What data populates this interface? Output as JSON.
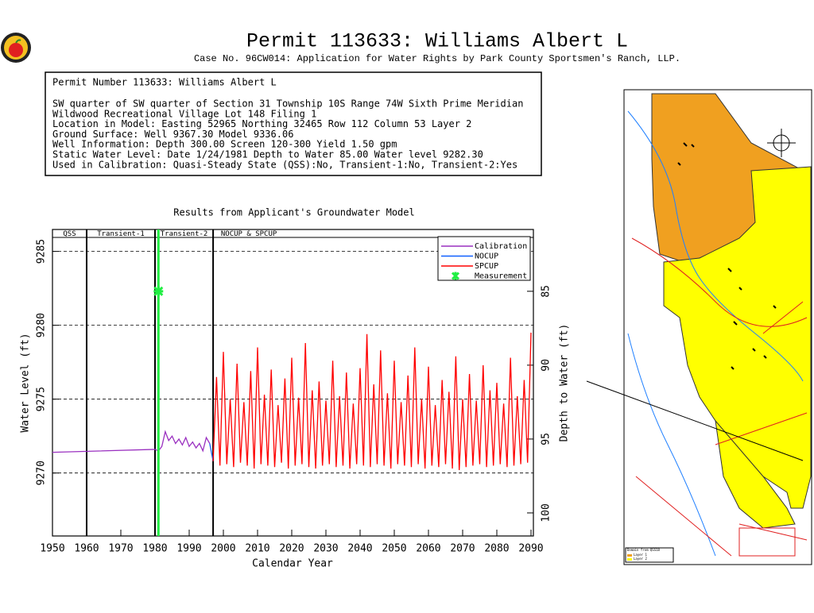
{
  "header": {
    "title": "Permit  113633:   Williams  Albert  L",
    "subtitle": "Case No. 96CW014: Application for Water Rights by Park County Sportsmen's Ranch, LLP."
  },
  "info": {
    "lines": [
      "Permit Number 113633: Williams Albert L",
      "SW quarter of SW quarter of Section 31 Township 10S Range 74W Sixth Prime Meridian",
      "Wildwood Recreational Village Lot 148 Filing 1",
      "Location in Model: Easting 52965 Northing  32465 Row 112 Column 53 Layer 2",
      "Ground Surface: Well  9367.30 Model  9336.06",
      "Well Information: Depth   300.00 Screen 120-300 Yield      1.50 gpm",
      "Static Water Level: Date  1/24/1981 Depth to Water     85.00 Water level  9282.30",
      "Used in Calibration: Quasi-Steady State (QSS):No, Transient-1:No, Transient-2:Yes"
    ]
  },
  "map": {
    "legend": [
      "Domain from QSS18",
      "Layer 1",
      "Layer 2"
    ]
  },
  "chart_data": {
    "type": "line",
    "title": "Results from Applicant's Groundwater Model",
    "x_label": "Calendar Year",
    "y_label": "Water Level (ft)",
    "y2_label": "Depth to Water (ft)",
    "xlim": [
      1950,
      2090.7
    ],
    "xticks": [
      1950,
      1960,
      1970,
      1980,
      1990,
      2000,
      2010,
      2020,
      2030,
      2040,
      2050,
      2060,
      2070,
      2080,
      2090
    ],
    "ylim": [
      9265.9,
      9286.0
    ],
    "yticks": [
      9270,
      9275,
      9280,
      9285
    ],
    "y2lim": [
      101.4,
      81.3
    ],
    "y2ticks": [
      85,
      90,
      95,
      100
    ],
    "grid": true,
    "legend": "top-right",
    "periods": [
      {
        "label": "QSS",
        "start": 1950,
        "end": 1960
      },
      {
        "label": "Transient-1",
        "start": 1960,
        "end": 1980
      },
      {
        "label": "Transient-2",
        "start": 1980,
        "end": 1997
      },
      {
        "label": "NOCUP  &  SPCUP",
        "start": 1997,
        "end": 2090.7
      }
    ],
    "series": [
      {
        "name": "Calibration",
        "color": "#9a30c0",
        "x": [
          1950,
          1980,
          1981,
          1982,
          1983,
          1984,
          1985,
          1986,
          1987,
          1988,
          1989,
          1990,
          1991,
          1992,
          1993,
          1994,
          1995,
          1996
        ],
        "values": [
          9271.4,
          9271.6,
          9271.5,
          9271.8,
          9272.8,
          9272.2,
          9272.5,
          9272.0,
          9272.3,
          9271.9,
          9272.4,
          9271.8,
          9272.1,
          9271.7,
          9272.0,
          9271.5,
          9272.4,
          9272.0
        ]
      },
      {
        "name": "NOCUP",
        "color": "#1060ff",
        "x": [
          1996,
          1997
        ],
        "values": [
          9272.0,
          9270.8
        ]
      },
      {
        "name": "SPCUP",
        "color": "#ff0000",
        "x": [
          1997,
          1998,
          1999,
          2000,
          2001,
          2002,
          2003,
          2004,
          2005,
          2006,
          2007,
          2008,
          2009,
          2010,
          2011,
          2012,
          2013,
          2014,
          2015,
          2016,
          2017,
          2018,
          2019,
          2020,
          2021,
          2022,
          2023,
          2024,
          2025,
          2026,
          2027,
          2028,
          2029,
          2030,
          2031,
          2032,
          2033,
          2034,
          2035,
          2036,
          2037,
          2038,
          2039,
          2040,
          2041,
          2042,
          2043,
          2044,
          2045,
          2046,
          2047,
          2048,
          2049,
          2050,
          2051,
          2052,
          2053,
          2054,
          2055,
          2056,
          2057,
          2058,
          2059,
          2060,
          2061,
          2062,
          2063,
          2064,
          2065,
          2066,
          2067,
          2068,
          2069,
          2070,
          2071,
          2072,
          2073,
          2074,
          2075,
          2076,
          2077,
          2078,
          2079,
          2080,
          2081,
          2082,
          2083,
          2084,
          2085,
          2086,
          2087,
          2088,
          2089,
          2090
        ],
        "values": [
          9270.8,
          9276.5,
          9270.5,
          9278.2,
          9270.6,
          9275.0,
          9270.4,
          9277.4,
          9270.7,
          9274.8,
          9270.5,
          9276.9,
          9270.3,
          9278.5,
          9270.6,
          9275.3,
          9270.5,
          9277.0,
          9270.4,
          9274.6,
          9270.7,
          9276.4,
          9270.3,
          9277.8,
          9270.5,
          9275.1,
          9270.6,
          9278.8,
          9270.4,
          9275.6,
          9270.3,
          9276.2,
          9270.5,
          9274.9,
          9270.6,
          9277.6,
          9270.4,
          9275.2,
          9270.5,
          9276.8,
          9270.3,
          9274.7,
          9270.6,
          9277.1,
          9270.5,
          9279.4,
          9270.4,
          9276.0,
          9270.6,
          9278.3,
          9270.5,
          9275.4,
          9270.3,
          9277.6,
          9270.6,
          9274.8,
          9270.5,
          9276.6,
          9270.4,
          9278.5,
          9270.6,
          9275.0,
          9270.3,
          9277.2,
          9270.5,
          9274.6,
          9270.4,
          9276.3,
          9270.6,
          9275.5,
          9270.3,
          9277.9,
          9270.2,
          9275.0,
          9270.4,
          9276.7,
          9270.5,
          9274.9,
          9270.6,
          9277.3,
          9270.4,
          9275.6,
          9270.5,
          9276.1,
          9270.6,
          9274.7,
          9270.4,
          9277.8,
          9270.5,
          9275.2,
          9270.6,
          9276.3,
          9270.7,
          9279.5
        ]
      },
      {
        "name": "Measurement",
        "color": "#22ee44",
        "x": [
          1981
        ],
        "values": [
          9282.3
        ]
      }
    ]
  }
}
